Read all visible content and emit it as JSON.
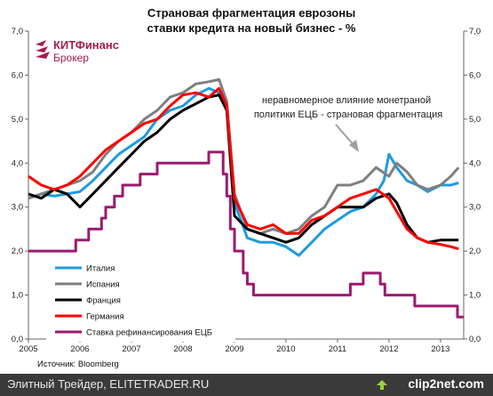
{
  "logo": {
    "brand": "КИТФинанс",
    "sub": "Брокер"
  },
  "source": "Источник: Bloomberg",
  "footer": {
    "left": "Элитный Трейдер, ELITETRADER.RU",
    "right": "clip2net.com"
  },
  "chart_data": {
    "type": "line",
    "title": "Страновая фрагментация еврозоны",
    "subtitle": "ставки кредита на новый бизнес - %",
    "annotation": "неравномерное влияние монетраной политики ЕЦБ - страновая фрагментация",
    "xlim": [
      2005,
      2013.45
    ],
    "ylim": [
      0,
      7
    ],
    "x_ticks": [
      "2005",
      "2006",
      "2007",
      "2008",
      "2009",
      "2010",
      "2011",
      "2012",
      "2013"
    ],
    "y_ticks": [
      "0,0",
      "1,0",
      "2,0",
      "3,0",
      "4,0",
      "5,0",
      "6,0",
      "7,0"
    ],
    "grid": false,
    "legend_position": "bottom-left",
    "series": [
      {
        "name": "Италия",
        "color": "#1e9be0",
        "width": 3,
        "step": false,
        "x": [
          2005,
          2005.25,
          2005.5,
          2005.75,
          2006,
          2006.25,
          2006.5,
          2006.75,
          2007,
          2007.25,
          2007.5,
          2007.75,
          2008,
          2008.25,
          2008.5,
          2008.7,
          2008.85,
          2009,
          2009.25,
          2009.5,
          2009.75,
          2010,
          2010.25,
          2010.5,
          2010.75,
          2011,
          2011.25,
          2011.5,
          2011.75,
          2011.9,
          2012,
          2012.15,
          2012.35,
          2012.55,
          2012.75,
          2013,
          2013.2,
          2013.35
        ],
        "y": [
          3.2,
          3.3,
          3.25,
          3.3,
          3.35,
          3.6,
          3.9,
          4.2,
          4.4,
          4.6,
          5.0,
          5.2,
          5.3,
          5.55,
          5.7,
          5.6,
          5.3,
          3.1,
          2.3,
          2.2,
          2.2,
          2.1,
          1.9,
          2.2,
          2.5,
          2.7,
          2.9,
          3.0,
          3.3,
          3.6,
          4.2,
          3.9,
          3.6,
          3.5,
          3.35,
          3.5,
          3.5,
          3.55
        ]
      },
      {
        "name": "Испания",
        "color": "#7f7f7f",
        "width": 3,
        "step": false,
        "x": [
          2005,
          2005.25,
          2005.5,
          2005.75,
          2006,
          2006.25,
          2006.5,
          2006.75,
          2007,
          2007.25,
          2007.5,
          2007.75,
          2008,
          2008.25,
          2008.5,
          2008.7,
          2008.85,
          2009,
          2009.25,
          2009.5,
          2009.75,
          2010,
          2010.25,
          2010.5,
          2010.75,
          2011,
          2011.25,
          2011.5,
          2011.75,
          2012,
          2012.15,
          2012.35,
          2012.55,
          2012.75,
          2013,
          2013.2,
          2013.35
        ],
        "y": [
          3.2,
          3.3,
          3.4,
          3.5,
          3.6,
          3.8,
          4.2,
          4.5,
          4.7,
          5.0,
          5.2,
          5.5,
          5.6,
          5.8,
          5.85,
          5.9,
          5.4,
          3.3,
          2.5,
          2.4,
          2.5,
          2.4,
          2.5,
          2.8,
          3.0,
          3.5,
          3.5,
          3.6,
          3.9,
          3.7,
          4.0,
          3.8,
          3.5,
          3.4,
          3.5,
          3.7,
          3.9
        ]
      },
      {
        "name": "Франция",
        "color": "#000000",
        "width": 3,
        "step": false,
        "x": [
          2005,
          2005.25,
          2005.5,
          2005.75,
          2006,
          2006.25,
          2006.5,
          2006.75,
          2007,
          2007.25,
          2007.5,
          2007.75,
          2008,
          2008.25,
          2008.5,
          2008.7,
          2008.85,
          2009,
          2009.25,
          2009.5,
          2009.75,
          2010,
          2010.25,
          2010.5,
          2010.75,
          2011,
          2011.25,
          2011.5,
          2011.75,
          2012,
          2012.15,
          2012.35,
          2012.55,
          2012.75,
          2013,
          2013.2,
          2013.35
        ],
        "y": [
          3.3,
          3.2,
          3.4,
          3.3,
          3.0,
          3.3,
          3.6,
          3.9,
          4.2,
          4.5,
          4.7,
          5.0,
          5.2,
          5.35,
          5.5,
          5.55,
          5.2,
          2.8,
          2.5,
          2.4,
          2.3,
          2.2,
          2.3,
          2.6,
          2.8,
          3.0,
          3.0,
          3.0,
          3.2,
          3.3,
          3.1,
          2.6,
          2.3,
          2.2,
          2.25,
          2.25,
          2.25
        ]
      },
      {
        "name": "Германия",
        "color": "#ff0000",
        "width": 3,
        "step": false,
        "x": [
          2005,
          2005.25,
          2005.5,
          2005.75,
          2006,
          2006.25,
          2006.5,
          2006.75,
          2007,
          2007.25,
          2007.5,
          2007.75,
          2008,
          2008.25,
          2008.5,
          2008.7,
          2008.85,
          2009,
          2009.25,
          2009.5,
          2009.75,
          2010,
          2010.25,
          2010.5,
          2010.75,
          2011,
          2011.25,
          2011.5,
          2011.75,
          2012,
          2012.15,
          2012.35,
          2012.55,
          2012.75,
          2013,
          2013.2,
          2013.35
        ],
        "y": [
          3.7,
          3.5,
          3.4,
          3.5,
          3.7,
          4.0,
          4.3,
          4.5,
          4.7,
          4.9,
          5.0,
          5.3,
          5.55,
          5.6,
          5.5,
          5.7,
          5.3,
          3.2,
          2.6,
          2.5,
          2.6,
          2.4,
          2.4,
          2.7,
          2.8,
          3.0,
          3.2,
          3.3,
          3.4,
          3.2,
          2.9,
          2.5,
          2.3,
          2.2,
          2.15,
          2.1,
          2.05
        ]
      },
      {
        "name": "Ставка рефинансирования ЕЦБ",
        "color": "#9b1a6e",
        "width": 3,
        "step": true,
        "x": [
          2005,
          2005.92,
          2006.17,
          2006.42,
          2006.5,
          2006.67,
          2006.83,
          2007.17,
          2007.5,
          2008.5,
          2008.78,
          2008.85,
          2008.92,
          2009,
          2009.17,
          2009.25,
          2009.37,
          2011.25,
          2011.5,
          2011.83,
          2011.92,
          2012.5,
          2013.33,
          2013.45
        ],
        "y": [
          2.0,
          2.25,
          2.5,
          2.75,
          3.0,
          3.25,
          3.5,
          3.75,
          4.0,
          4.25,
          3.75,
          3.25,
          2.5,
          2.0,
          1.5,
          1.25,
          1.0,
          1.25,
          1.5,
          1.25,
          1.0,
          0.75,
          0.5,
          0.5
        ]
      }
    ]
  }
}
